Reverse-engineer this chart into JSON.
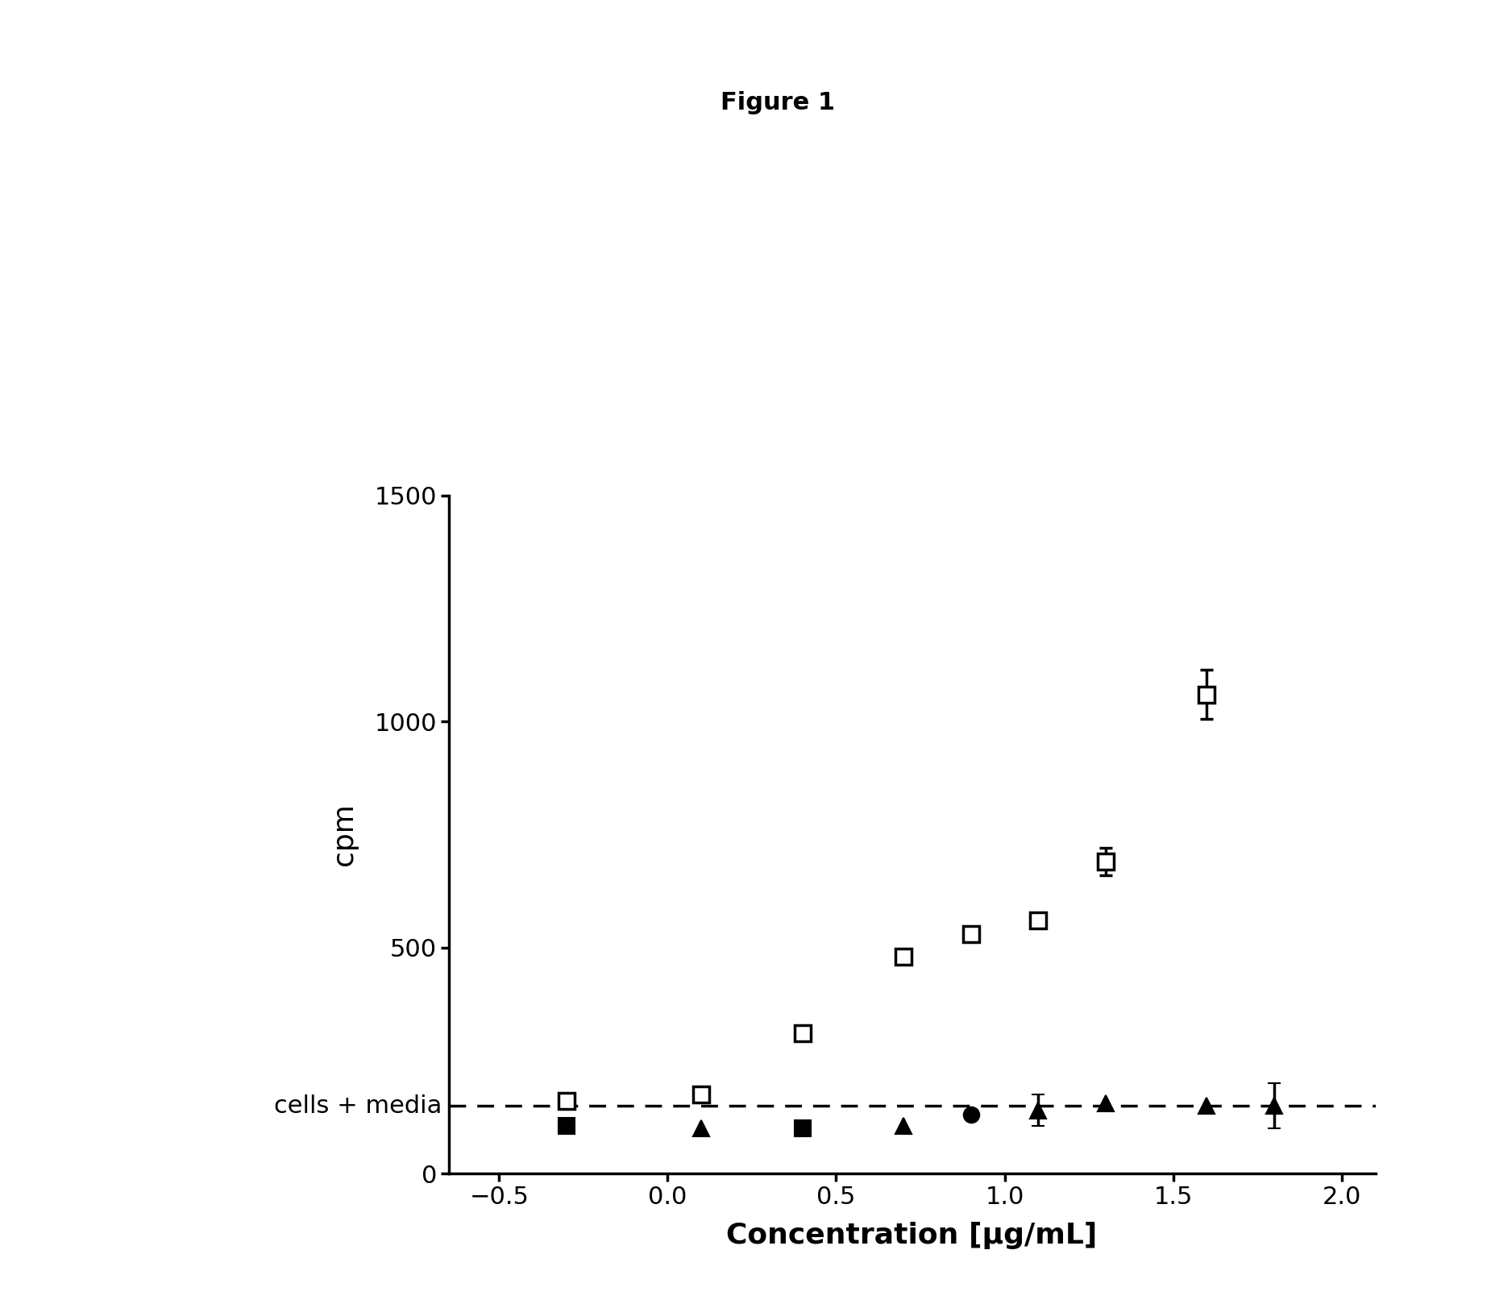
{
  "title": "Figure 1",
  "xlabel": "Concentration [μg/mL]",
  "ylabel": "cpm",
  "dashed_line_y": 150,
  "dashed_line_label": "cells + media",
  "xlim": [
    -0.65,
    2.1
  ],
  "ylim": [
    0,
    1500
  ],
  "yticks": [
    0,
    500,
    1000,
    1500
  ],
  "xticks": [
    -0.5,
    0.0,
    0.5,
    1.0,
    1.5,
    2.0
  ],
  "open_square_x": [
    -0.3,
    0.1,
    0.4,
    0.7,
    0.9,
    1.1,
    1.3,
    1.6
  ],
  "open_square_y": [
    160,
    175,
    310,
    480,
    530,
    560,
    690,
    1060
  ],
  "open_square_yerr": [
    0,
    12,
    0,
    0,
    0,
    0,
    30,
    55
  ],
  "filled_x": [
    -0.3,
    0.1,
    0.4,
    0.7,
    0.9,
    1.1,
    1.3,
    1.6,
    1.8
  ],
  "filled_y": [
    105,
    100,
    100,
    105,
    130,
    140,
    155,
    150,
    150
  ],
  "filled_yerr": [
    0,
    0,
    0,
    0,
    0,
    35,
    0,
    0,
    50
  ],
  "filled_markers": [
    "s",
    "^",
    "s",
    "^",
    "o",
    "^",
    "^",
    "^",
    "^"
  ],
  "bg_color": "#ffffff",
  "marker_color": "#000000",
  "marker_size": 14,
  "edge_width": 2.5,
  "title_fontsize": 22,
  "label_fontsize": 26,
  "tick_fontsize": 22,
  "dashed_label_fontsize": 22
}
